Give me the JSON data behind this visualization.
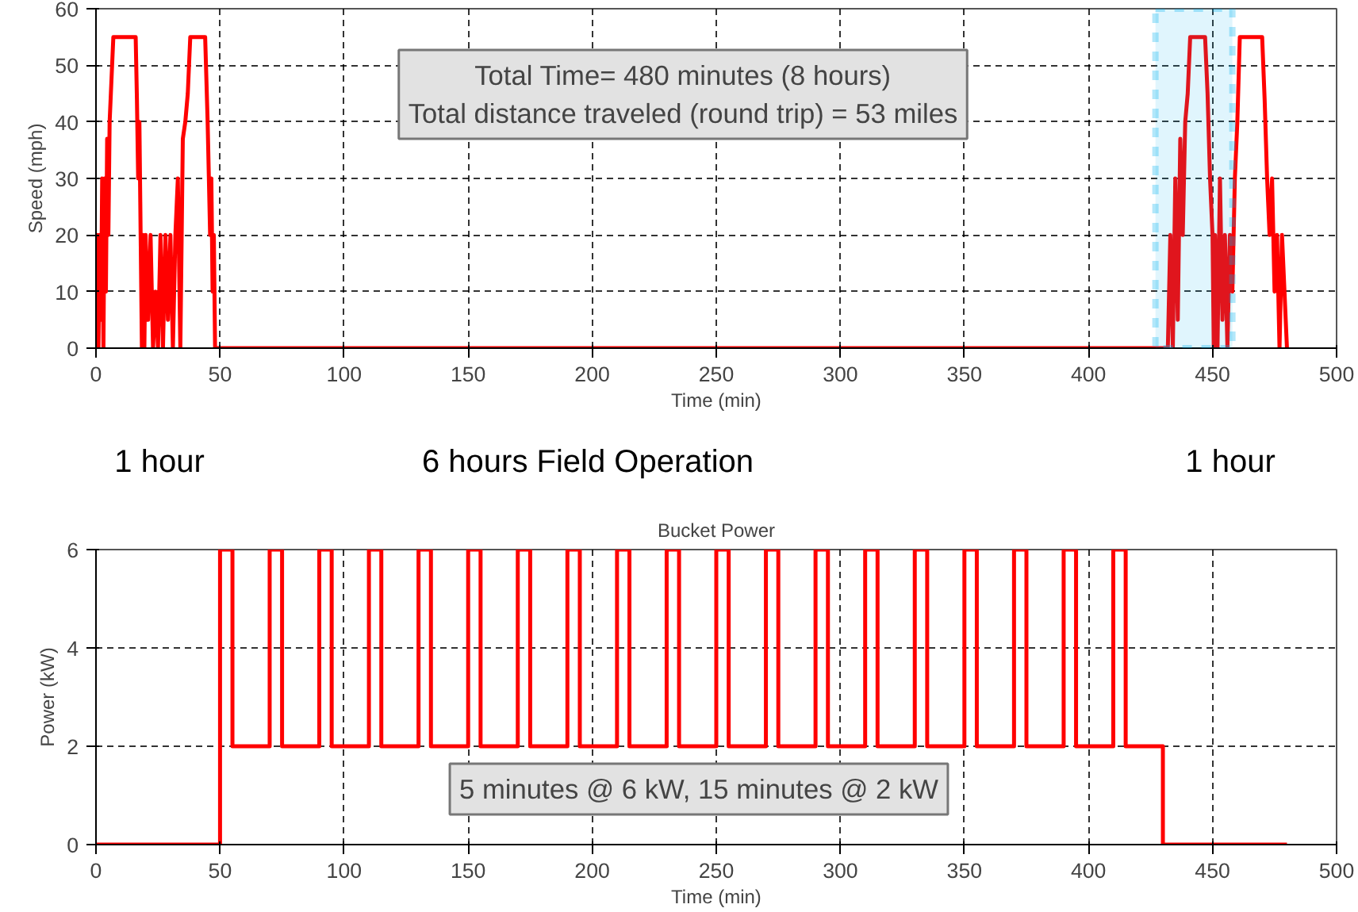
{
  "chart_data": [
    {
      "type": "line",
      "xlabel": "Time (min)",
      "ylabel": "Speed (mph)",
      "series": [
        {
          "color": "#ff0000",
          "x": [
            0,
            0.5,
            1,
            1.5,
            2,
            2.5,
            3,
            3.5,
            4,
            4.5,
            5,
            5.5,
            6,
            7,
            8,
            16,
            16.5,
            17,
            17.5,
            18,
            18.5,
            19,
            19.5,
            20,
            21,
            22,
            23,
            24,
            25,
            26,
            27,
            28,
            29,
            30,
            31,
            32,
            33,
            34,
            35,
            36,
            37,
            38,
            44,
            45,
            45.5,
            46,
            46.5,
            47,
            47.5,
            48,
            50,
            430,
            432,
            433,
            434,
            435,
            436,
            437,
            438,
            439,
            440,
            441,
            447,
            448,
            449,
            450,
            450.5,
            451,
            452,
            453,
            454,
            455,
            456,
            457,
            458,
            459,
            460,
            461,
            470,
            471,
            472,
            473,
            474,
            475,
            476,
            477,
            478,
            479,
            480
          ],
          "values": [
            0,
            20,
            0,
            20,
            5,
            30,
            0,
            30,
            10,
            37,
            20,
            40,
            45,
            55,
            55,
            55,
            44,
            30,
            40,
            20,
            0,
            20,
            0,
            20,
            5,
            20,
            0,
            10,
            0,
            20,
            0,
            20,
            5,
            20,
            0,
            20,
            30,
            0,
            37,
            40,
            45,
            55,
            55,
            40,
            30,
            20,
            30,
            10,
            20,
            0,
            0,
            0,
            0,
            20,
            0,
            30,
            5,
            37,
            20,
            40,
            45,
            55,
            55,
            45,
            30,
            20,
            0,
            20,
            0,
            30,
            5,
            20,
            0,
            20,
            10,
            30,
            40,
            55,
            55,
            44,
            30,
            20,
            30,
            10,
            20,
            0,
            20,
            10,
            0
          ]
        }
      ],
      "xlim": [
        0,
        500
      ],
      "ylim": [
        0,
        60
      ],
      "xticks": [
        0,
        50,
        100,
        150,
        200,
        250,
        300,
        350,
        400,
        450,
        500
      ],
      "yticks": [
        0,
        10,
        20,
        30,
        40,
        50,
        60
      ],
      "grid": true,
      "line_style": "solid",
      "bands": [
        {
          "axis": "x",
          "from": 427,
          "to": 458,
          "color": "#00b0f0"
        }
      ],
      "annotations": [
        "Total Time= 480 minutes (8 hours)\nTotal distance traveled (round trip) = 53 miles",
        "1 hour",
        "6 hours Field Operation",
        "1 hour"
      ]
    },
    {
      "type": "step",
      "title": "Bucket Power",
      "xlabel": "Time (min)",
      "ylabel": "Power (kW)",
      "series": [
        {
          "color": "#ff0000",
          "x": [
            0,
            50,
            55,
            70,
            75,
            90,
            95,
            110,
            115,
            130,
            135,
            150,
            155,
            170,
            175,
            190,
            195,
            210,
            215,
            230,
            235,
            250,
            255,
            270,
            275,
            290,
            295,
            310,
            315,
            330,
            335,
            350,
            355,
            370,
            375,
            390,
            395,
            410,
            415,
            430,
            480
          ],
          "values": [
            0,
            6,
            2,
            6,
            2,
            6,
            2,
            6,
            2,
            6,
            2,
            6,
            2,
            6,
            2,
            6,
            2,
            6,
            2,
            6,
            2,
            6,
            2,
            6,
            2,
            6,
            2,
            6,
            2,
            6,
            2,
            6,
            2,
            6,
            2,
            6,
            2,
            6,
            2,
            0,
            0
          ]
        }
      ],
      "xlim": [
        0,
        500
      ],
      "ylim": [
        0,
        6
      ],
      "xticks": [
        0,
        50,
        100,
        150,
        200,
        250,
        300,
        350,
        400,
        450,
        500
      ],
      "yticks": [
        0,
        2,
        4,
        6
      ],
      "grid": true,
      "line_style": "solid",
      "annotations": [
        "5 minutes @ 6 kW, 15 minutes @ 2 kW"
      ]
    }
  ]
}
